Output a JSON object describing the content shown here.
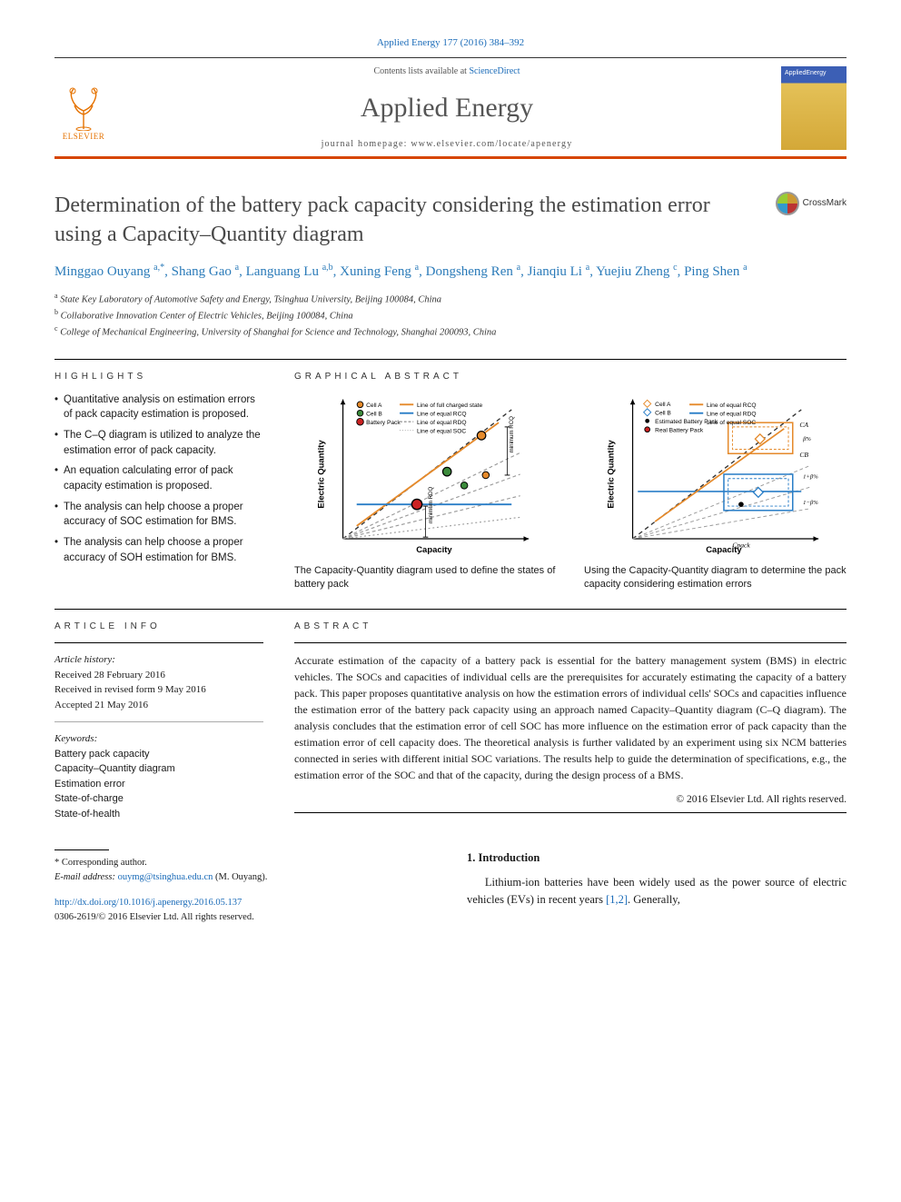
{
  "citation": "Applied Energy 177 (2016) 384–392",
  "contents_prefix": "Contents lists available at ",
  "contents_link": "ScienceDirect",
  "journal": "Applied Energy",
  "homepage_label": "journal homepage: www.elsevier.com/locate/apenergy",
  "publisher_logo": "ELSEVIER",
  "cover_label": "AppliedEnergy",
  "crossmark": "CrossMark",
  "title": "Determination of the battery pack capacity considering the estimation error using a Capacity–Quantity diagram",
  "authors_html": "Minggao Ouyang <sup>a,*</sup>, Shang Gao <sup>a</sup>, Languang Lu <sup>a,b</sup>, Xuning Feng <sup>a</sup>, Dongsheng Ren <sup>a</sup>, Jianqiu Li <sup>a</sup>, Yuejiu Zheng <sup>c</sup>, Ping Shen <sup>a</sup>",
  "affiliations": [
    "a State Key Laboratory of Automotive Safety and Energy, Tsinghua University, Beijing 100084, China",
    "b Collaborative Innovation Center of Electric Vehicles, Beijing 100084, China",
    "c College of Mechanical Engineering, University of Shanghai for Science and Technology, Shanghai 200093, China"
  ],
  "highlights_head": "HIGHLIGHTS",
  "highlights": [
    "Quantitative analysis on estimation errors of pack capacity estimation is proposed.",
    "The C–Q diagram is utilized to analyze the estimation error of pack capacity.",
    "An equation calculating error of pack capacity estimation is proposed.",
    "The analysis can help choose a proper accuracy of SOC estimation for BMS.",
    "The analysis can help choose a proper accuracy of SOH estimation for BMS."
  ],
  "ga_head": "GRAPHICAL ABSTRACT",
  "ga": {
    "panel1": {
      "xlabel": "Capacity",
      "ylabel": "Electric Quantity",
      "legend": [
        "Cell A",
        "Cell B",
        "Battery Pack",
        "Line of full charged state",
        "Line of equal RCQ",
        "Line of equal RDQ",
        "Line of equal SOC"
      ],
      "legend_markers": [
        "circle-orange-black",
        "circle-green-black",
        "circle-red-black",
        "line-orange",
        "line-blue",
        "line-gray-dash",
        "line-dot"
      ],
      "annot": [
        "minimum RCQ",
        "minimum RDQ"
      ],
      "caption": "The Capacity-Quantity diagram used to define the states of battery pack",
      "colors": {
        "axis": "#000",
        "diag": "#333",
        "orange": "#e58a2b",
        "blue": "#2a7ec7",
        "gray": "#9a9a9a",
        "cellA": "#e58a2b",
        "cellB": "#3c8b3c",
        "pack": "#c22"
      }
    },
    "panel2": {
      "xlabel": "Capacity",
      "ylabel": "Electric Quantity",
      "legend": [
        "Cell A",
        "Cell B",
        "Estimated Battery Pack",
        "Real Battery Pack",
        "Line of equal RCQ",
        "Line of equal RDQ",
        "Line of equal SOC"
      ],
      "annot": [
        "CA",
        "CB",
        "Cpack",
        "β%",
        "1+β%",
        "1−β%"
      ],
      "caption": "Using the Capacity-Quantity diagram to determine the pack capacity considering estimation errors"
    }
  },
  "article_info_head": "ARTICLE INFO",
  "article_history_label": "Article history:",
  "history": {
    "received": "Received 28 February 2016",
    "revised": "Received in revised form 9 May 2016",
    "accepted": "Accepted 21 May 2016"
  },
  "keywords_label": "Keywords:",
  "keywords": [
    "Battery pack capacity",
    "Capacity–Quantity diagram",
    "Estimation error",
    "State-of-charge",
    "State-of-health"
  ],
  "abstract_head": "ABSTRACT",
  "abstract": "Accurate estimation of the capacity of a battery pack is essential for the battery management system (BMS) in electric vehicles. The SOCs and capacities of individual cells are the prerequisites for accurately estimating the capacity of a battery pack. This paper proposes quantitative analysis on how the estimation errors of individual cells' SOCs and capacities influence the estimation error of the battery pack capacity using an approach named Capacity–Quantity diagram (C–Q diagram). The analysis concludes that the estimation error of cell SOC has more influence on the estimation error of pack capacity than the estimation error of cell capacity does. The theoretical analysis is further validated by an experiment using six NCM batteries connected in series with different initial SOC variations. The results help to guide the determination of specifications, e.g., the estimation error of the SOC and that of the capacity, during the design process of a BMS.",
  "copyright": "© 2016 Elsevier Ltd. All rights reserved.",
  "intro_head": "1. Introduction",
  "intro_text_prefix": "Lithium-ion batteries have been widely used as the power source of electric vehicles (EVs) in recent years ",
  "intro_refs": "[1,2]",
  "intro_text_suffix": ". Generally,",
  "corresponding_label": "* Corresponding author.",
  "email_label": "E-mail address: ",
  "email": "ouymg@tsinghua.edu.cn",
  "email_author": " (M. Ouyang).",
  "doi_prefix": "http://dx.doi.org/",
  "doi": "10.1016/j.apenergy.2016.05.137",
  "issn": "0306-2619/© 2016 Elsevier Ltd. All rights reserved."
}
